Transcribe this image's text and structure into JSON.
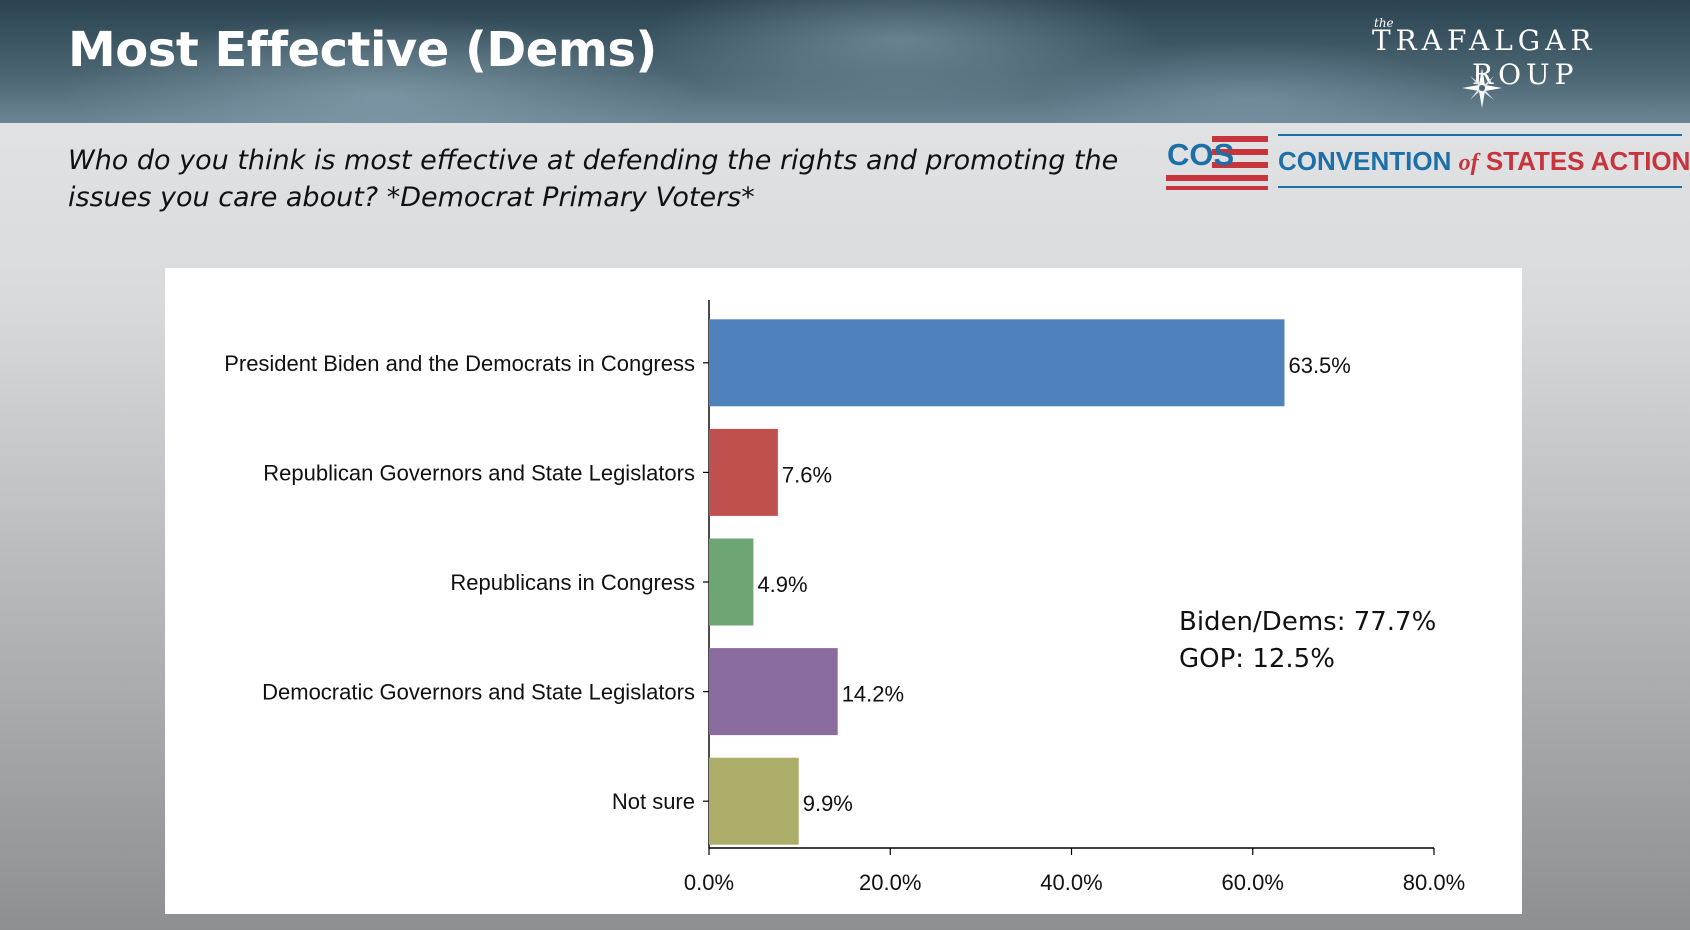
{
  "slide": {
    "title": "Most Effective (Dems)",
    "question": "Who do you think is most effective at defending the rights and promoting the issues you care about? *Democrat Primary Voters*"
  },
  "logos": {
    "trafalgar": {
      "the": "the",
      "line1": "TRAFALGAR",
      "line2": "ROUP"
    },
    "cos": {
      "badge": "COS",
      "name_part1": "CONVENTION",
      "name_part2": "of",
      "name_part3": "STATES ACTION"
    }
  },
  "summary": {
    "line1": "Biden/Dems: 77.7%",
    "line2": "GOP: 12.5%"
  },
  "chart_data": {
    "type": "bar",
    "orientation": "horizontal",
    "title": "",
    "xlabel": "",
    "ylabel": "",
    "categories": [
      "President Biden and the Democrats in Congress",
      "Republican Governors and State Legislators",
      "Republicans in Congress",
      "Democratic Governors and State Legislators",
      "Not sure"
    ],
    "values": [
      63.5,
      7.6,
      4.9,
      14.2,
      9.9
    ],
    "value_labels": [
      "63.5%",
      "7.6%",
      "4.9%",
      "14.2%",
      "9.9%"
    ],
    "colors": [
      "#4f81bd",
      "#c0504d",
      "#6ea574",
      "#8a6d9e",
      "#abad68"
    ],
    "xlim": [
      0,
      80
    ],
    "xticks": [
      0,
      20,
      40,
      60,
      80
    ],
    "xtick_labels": [
      "0.0%",
      "20.0%",
      "40.0%",
      "60.0%",
      "80.0%"
    ],
    "grid": false,
    "legend": "none"
  }
}
